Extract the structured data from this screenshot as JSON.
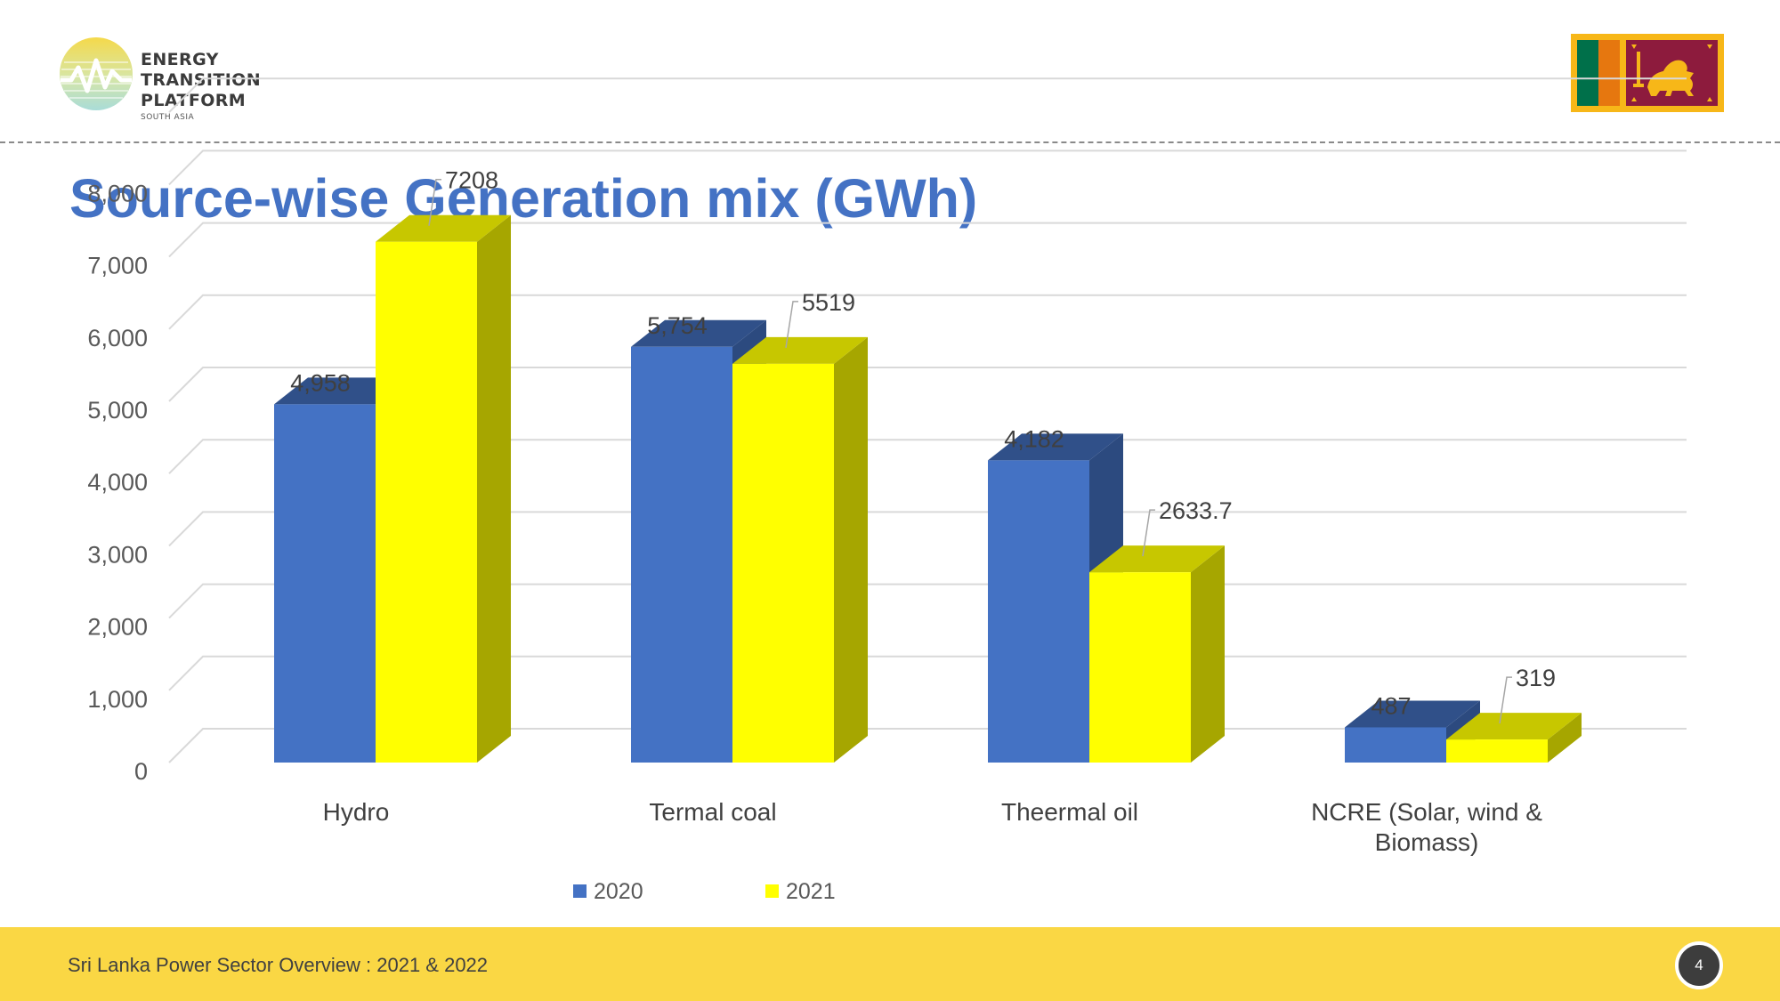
{
  "header": {
    "logo": {
      "line1": "ENERGY TRANSITION",
      "line2": "PLATFORM",
      "line3": "SOUTH ASIA"
    },
    "flag_icon": "sri-lanka-flag-icon"
  },
  "slide_title": "Source-wise Generation mix (GWh)",
  "chart_data": {
    "type": "bar",
    "title": "Source-wise Generation mix (GWh)",
    "categories": [
      "Hydro",
      "Termal coal",
      "Theermal oil",
      "NCRE (Solar, wind & Biomass)"
    ],
    "series": [
      {
        "name": "2020",
        "values": [
          4958,
          5754,
          4182,
          487
        ],
        "labels": [
          "4,958",
          "5,754",
          "4,182",
          "487"
        ],
        "color": "#4472c4"
      },
      {
        "name": "2021",
        "values": [
          7208,
          5519,
          2633.7,
          319
        ],
        "labels": [
          "7208",
          "5519",
          "2633.7",
          "319"
        ],
        "color": "#ffff00"
      }
    ],
    "y_ticks": [
      "0",
      "1,000",
      "2,000",
      "3,000",
      "4,000",
      "5,000",
      "6,000",
      "7,000",
      "8,000"
    ],
    "ylim": [
      0,
      8000
    ],
    "xlabel": "",
    "ylabel": "",
    "grid": true,
    "legend_position": "bottom"
  },
  "footer": {
    "text": "Sri Lanka Power Sector Overview : 2021 & 2022",
    "page_number": "4"
  }
}
